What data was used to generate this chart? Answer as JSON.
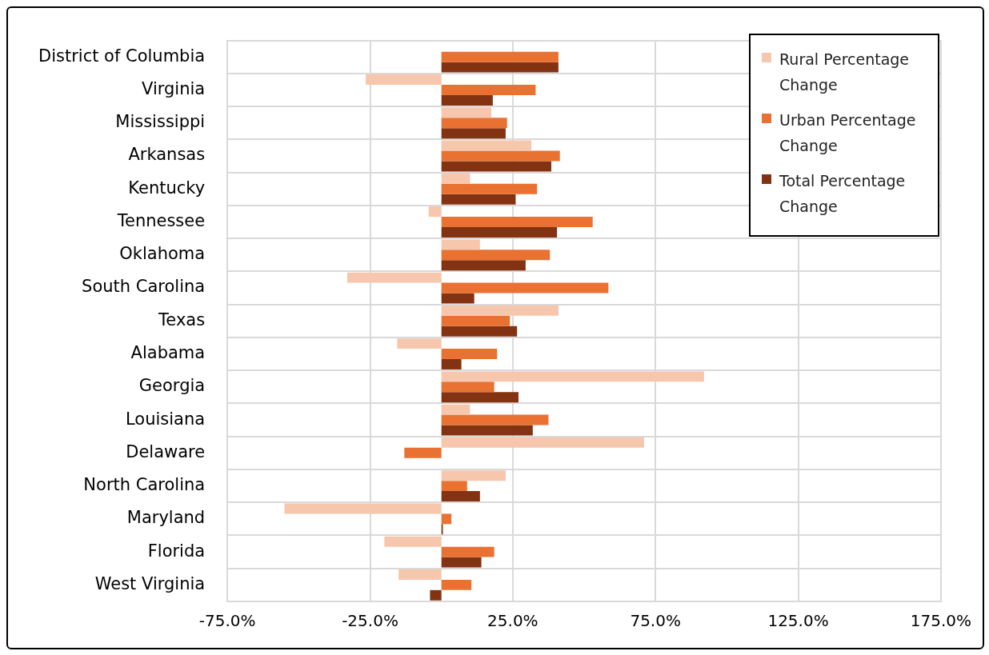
{
  "chart_data": {
    "type": "bar",
    "orientation": "horizontal",
    "categories": [
      "District of Columbia",
      "Virginia",
      "Mississippi",
      "Arkansas",
      "Kentucky",
      "Tennessee",
      "Oklahoma",
      "South Carolina",
      "Texas",
      "Alabama",
      "Georgia",
      "Louisiana",
      "Delaware",
      "North Carolina",
      "Maryland",
      "Florida",
      "West Virginia"
    ],
    "series": [
      {
        "name": "Rural Percentage Change",
        "color": "#f6c6ad",
        "values": [
          null,
          -26.5,
          17.5,
          31.5,
          10,
          -4.5,
          13.5,
          -33,
          41,
          -15.5,
          92,
          10,
          71,
          22.5,
          -55,
          -20,
          -15
        ]
      },
      {
        "name": "Urban Percentage Change",
        "color": "#e97132",
        "values": [
          41,
          33,
          23,
          41.5,
          33.5,
          53,
          38,
          58.5,
          24,
          19.5,
          18.5,
          37.5,
          -13,
          9,
          3.5,
          18.5,
          10.5
        ]
      },
      {
        "name": "Total Percentage Change",
        "color": "#843312",
        "values": [
          41,
          18,
          22.5,
          38.5,
          26,
          40.5,
          29.5,
          11.5,
          26.5,
          7,
          27,
          32,
          null,
          13.5,
          0.5,
          14,
          -4
        ]
      }
    ],
    "xlim": [
      -75,
      175
    ],
    "xticks": [
      {
        "value": -75,
        "label": "-75.0%"
      },
      {
        "value": -25,
        "label": "-25.0%"
      },
      {
        "value": 25,
        "label": "25.0%"
      },
      {
        "value": 75,
        "label": "75.0%"
      },
      {
        "value": 125,
        "label": "125.0%"
      },
      {
        "value": 175,
        "label": "175.0%"
      }
    ],
    "grid": true,
    "legend": "top right"
  }
}
